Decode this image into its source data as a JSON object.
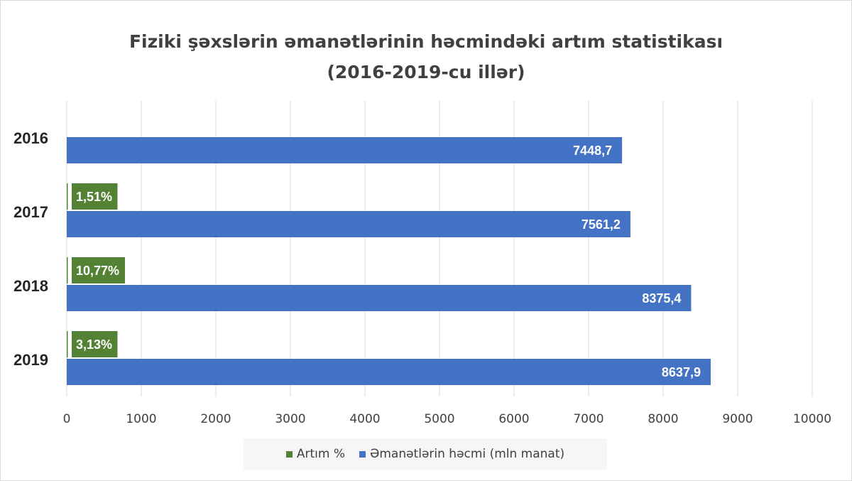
{
  "chart_data": {
    "type": "bar",
    "orientation": "horizontal",
    "title_line1": "Fiziki şəxslərin əmanətlərinin həcmindəki artım statistikası",
    "title_line2": "(2016-2019-cu illər)",
    "categories": [
      "2016",
      "2017",
      "2018",
      "2019"
    ],
    "series": [
      {
        "name": "Artım %",
        "color": "#548235",
        "values": [
          null,
          1.51,
          10.77,
          3.13
        ],
        "labels": [
          "",
          "1,51%",
          "10,77%",
          "3,13%"
        ]
      },
      {
        "name": "Əmanətlərin həcmi (mln manat)",
        "color": "#4472c4",
        "values": [
          7448.7,
          7561.2,
          8375.4,
          8637.9
        ],
        "labels": [
          "7448,7",
          "7561,2",
          "8375,4",
          "8637,9"
        ]
      }
    ],
    "xlim": [
      0,
      10000
    ],
    "xticks": [
      "0",
      "1000",
      "2000",
      "3000",
      "4000",
      "5000",
      "6000",
      "7000",
      "8000",
      "9000",
      "10000"
    ],
    "grid": true,
    "legend_position": "bottom"
  }
}
